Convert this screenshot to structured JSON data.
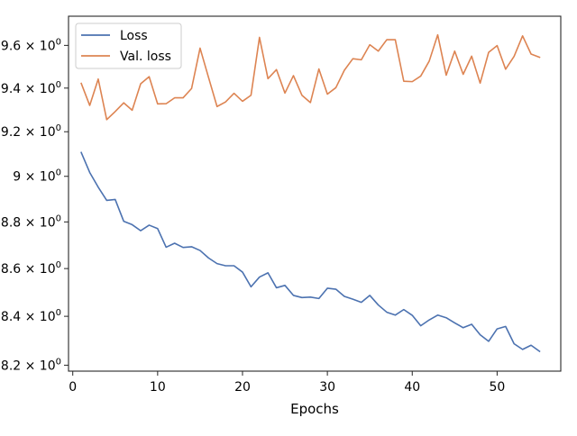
{
  "chart_data": {
    "type": "line",
    "title": "",
    "xlabel": "Epochs",
    "ylabel": "",
    "yscale": "log",
    "xlim": [
      -0.5,
      57.5
    ],
    "ylim": [
      8.176,
      9.739
    ],
    "grid": false,
    "legend_position": "upper-left",
    "x_ticks": [
      0,
      10,
      20,
      30,
      40,
      50
    ],
    "y_ticks": [
      {
        "value": 8.2,
        "mantissa": "8.2",
        "sup": "0"
      },
      {
        "value": 8.4,
        "mantissa": "8.4",
        "sup": "0"
      },
      {
        "value": 8.6,
        "mantissa": "8.6",
        "sup": "0"
      },
      {
        "value": 8.8,
        "mantissa": "8.8",
        "sup": "0"
      },
      {
        "value": 9.0,
        "mantissa": "9",
        "sup": "0"
      },
      {
        "value": 9.2,
        "mantissa": "9.2",
        "sup": "0"
      },
      {
        "value": 9.4,
        "mantissa": "9.4",
        "sup": "0"
      },
      {
        "value": 9.6,
        "mantissa": "9.6",
        "sup": "0"
      }
    ],
    "tick_times_symbol": "×",
    "tick_base": "10",
    "x": [
      1,
      2,
      3,
      4,
      5,
      6,
      7,
      8,
      9,
      10,
      11,
      12,
      13,
      14,
      15,
      16,
      17,
      18,
      19,
      20,
      21,
      22,
      23,
      24,
      25,
      26,
      27,
      28,
      29,
      30,
      31,
      32,
      33,
      34,
      35,
      36,
      37,
      38,
      39,
      40,
      41,
      42,
      43,
      44,
      45,
      46,
      47,
      48,
      49,
      50,
      51,
      52,
      53,
      54,
      55
    ],
    "series": [
      {
        "name": "Loss",
        "color": "#4c72b0",
        "values": [
          9.106,
          9.017,
          8.952,
          8.894,
          8.898,
          8.803,
          8.788,
          8.762,
          8.786,
          8.771,
          8.691,
          8.708,
          8.69,
          8.693,
          8.677,
          8.645,
          8.621,
          8.612,
          8.612,
          8.585,
          8.523,
          8.564,
          8.582,
          8.519,
          8.529,
          8.487,
          8.478,
          8.48,
          8.474,
          8.517,
          8.513,
          8.483,
          8.471,
          8.458,
          8.487,
          8.447,
          8.417,
          8.405,
          8.428,
          8.404,
          8.361,
          8.385,
          8.405,
          8.394,
          8.373,
          8.353,
          8.367,
          8.324,
          8.297,
          8.348,
          8.358,
          8.287,
          8.264,
          8.281,
          8.256
        ]
      },
      {
        "name": "Val. loss",
        "color": "#dd8452",
        "values": [
          9.422,
          9.32,
          9.442,
          9.255,
          9.292,
          9.332,
          9.298,
          9.42,
          9.453,
          9.327,
          9.328,
          9.355,
          9.355,
          9.398,
          9.587,
          9.449,
          9.315,
          9.336,
          9.376,
          9.339,
          9.367,
          9.638,
          9.444,
          9.486,
          9.377,
          9.458,
          9.367,
          9.333,
          9.489,
          9.372,
          9.402,
          9.483,
          9.537,
          9.532,
          9.603,
          9.573,
          9.627,
          9.627,
          9.432,
          9.43,
          9.456,
          9.526,
          9.65,
          9.46,
          9.573,
          9.464,
          9.549,
          9.423,
          9.567,
          9.599,
          9.488,
          9.548,
          9.645,
          9.559,
          9.544
        ]
      }
    ]
  }
}
